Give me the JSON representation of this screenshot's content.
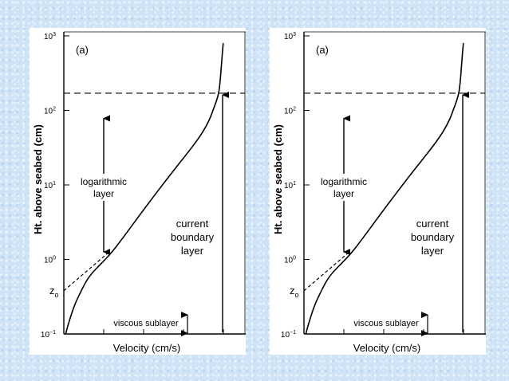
{
  "colors": {
    "background": "#cfe3f6",
    "panel": "#ffffff",
    "ink": "#000000"
  },
  "chart_data": [
    {
      "type": "line",
      "panel_label": "(a)",
      "xlabel": "Velocity (cm/s)",
      "ylabel": "Ht. above seabed (cm)",
      "yscale": "log",
      "ylim": [
        0.1,
        1000
      ],
      "ytick_bases": [
        "10",
        "10",
        "10",
        "10",
        "10"
      ],
      "ytick_exps": [
        "−1",
        "0",
        "1",
        "2",
        "3"
      ],
      "z0_label": "z",
      "z0_sub": "o",
      "annotations": {
        "log_layer": [
          "logarithmic",
          "layer"
        ],
        "boundary_layer": [
          "current",
          "boundary",
          "layer"
        ],
        "viscous_sublayer": "viscous sublayer"
      },
      "profile_height_cm": [
        0.1,
        0.15,
        0.25,
        0.4,
        0.6,
        0.9,
        1.2,
        2,
        5,
        15,
        40,
        70,
        110,
        150,
        200,
        400,
        800
      ],
      "profile_velocity_frac": [
        0.01,
        0.03,
        0.06,
        0.1,
        0.14,
        0.21,
        0.26,
        0.33,
        0.45,
        0.6,
        0.74,
        0.8,
        0.83,
        0.85,
        0.86,
        0.87,
        0.88
      ],
      "log_extrapolation_height_cm": [
        0.38,
        1.2
      ],
      "boundary_layer_top_cm": 170
    },
    {
      "type": "line",
      "panel_label": "(a)",
      "xlabel": "Velocity (cm/s)",
      "ylabel": "Ht. above seabed (cm)",
      "yscale": "log",
      "ylim": [
        0.1,
        1000
      ],
      "ytick_bases": [
        "10",
        "10",
        "10",
        "10",
        "10"
      ],
      "ytick_exps": [
        "−1",
        "0",
        "1",
        "2",
        "3"
      ],
      "z0_label": "z",
      "z0_sub": "o",
      "annotations": {
        "log_layer": [
          "logarithmic",
          "layer"
        ],
        "boundary_layer": [
          "current",
          "boundary",
          "layer"
        ],
        "viscous_sublayer": "viscous sublayer"
      },
      "profile_height_cm": [
        0.1,
        0.15,
        0.25,
        0.4,
        0.6,
        0.9,
        1.2,
        2,
        5,
        15,
        40,
        70,
        110,
        150,
        200,
        400,
        800
      ],
      "profile_velocity_frac": [
        0.01,
        0.03,
        0.06,
        0.1,
        0.14,
        0.21,
        0.26,
        0.33,
        0.45,
        0.6,
        0.74,
        0.8,
        0.83,
        0.85,
        0.86,
        0.87,
        0.88
      ],
      "log_extrapolation_height_cm": [
        0.38,
        1.2
      ],
      "boundary_layer_top_cm": 170
    }
  ]
}
